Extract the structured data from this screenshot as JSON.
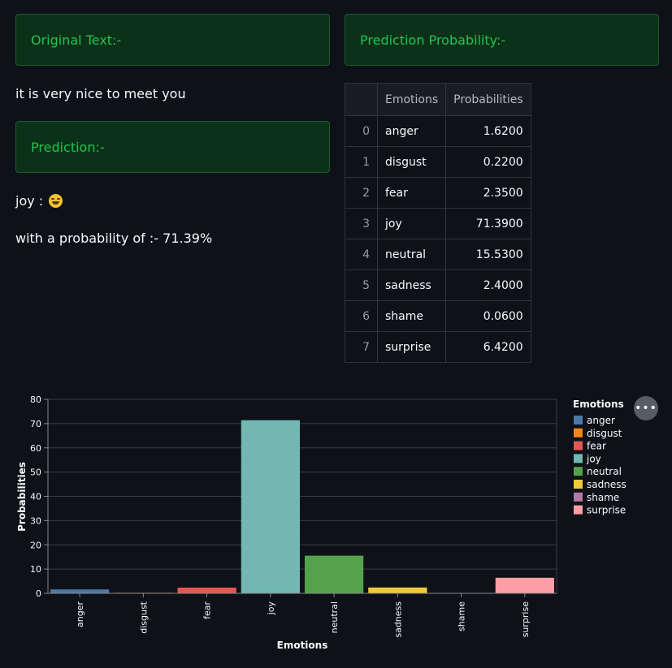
{
  "left": {
    "original_header": "Original Text:-",
    "original_text": "it is very nice to meet you",
    "prediction_header": "Prediction:-",
    "prediction_label": "joy :",
    "prediction_emoji": "joy-face-icon",
    "probability_text": "with a probability of :- 71.39%"
  },
  "right": {
    "prob_header": "Prediction Probability:-",
    "table": {
      "columns": [
        "Emotions",
        "Probabilities"
      ],
      "rows": [
        {
          "index": "0",
          "emotion": "anger",
          "prob": "1.6200"
        },
        {
          "index": "1",
          "emotion": "disgust",
          "prob": "0.2200"
        },
        {
          "index": "2",
          "emotion": "fear",
          "prob": "2.3500"
        },
        {
          "index": "3",
          "emotion": "joy",
          "prob": "71.3900"
        },
        {
          "index": "4",
          "emotion": "neutral",
          "prob": "15.5300"
        },
        {
          "index": "5",
          "emotion": "sadness",
          "prob": "2.4000"
        },
        {
          "index": "6",
          "emotion": "shame",
          "prob": "0.0600"
        },
        {
          "index": "7",
          "emotion": "surprise",
          "prob": "6.4200"
        }
      ]
    }
  },
  "more_button_icon": "more-horizontal-icon",
  "chart_data": {
    "type": "bar",
    "categories": [
      "anger",
      "disgust",
      "fear",
      "joy",
      "neutral",
      "sadness",
      "shame",
      "surprise"
    ],
    "values": [
      1.62,
      0.22,
      2.35,
      71.39,
      15.53,
      2.4,
      0.06,
      6.42
    ],
    "colors": [
      "#4c78a8",
      "#f58518",
      "#e45756",
      "#72b7b2",
      "#54a24b",
      "#eeca3b",
      "#b279a2",
      "#ff9da6"
    ],
    "xlabel": "Emotions",
    "ylabel": "Probabilities",
    "ylim": [
      0,
      80
    ],
    "yticks": [
      0,
      10,
      20,
      30,
      40,
      50,
      60,
      70,
      80
    ],
    "legend_title": "Emotions",
    "legend_position": "right",
    "grid": true
  }
}
